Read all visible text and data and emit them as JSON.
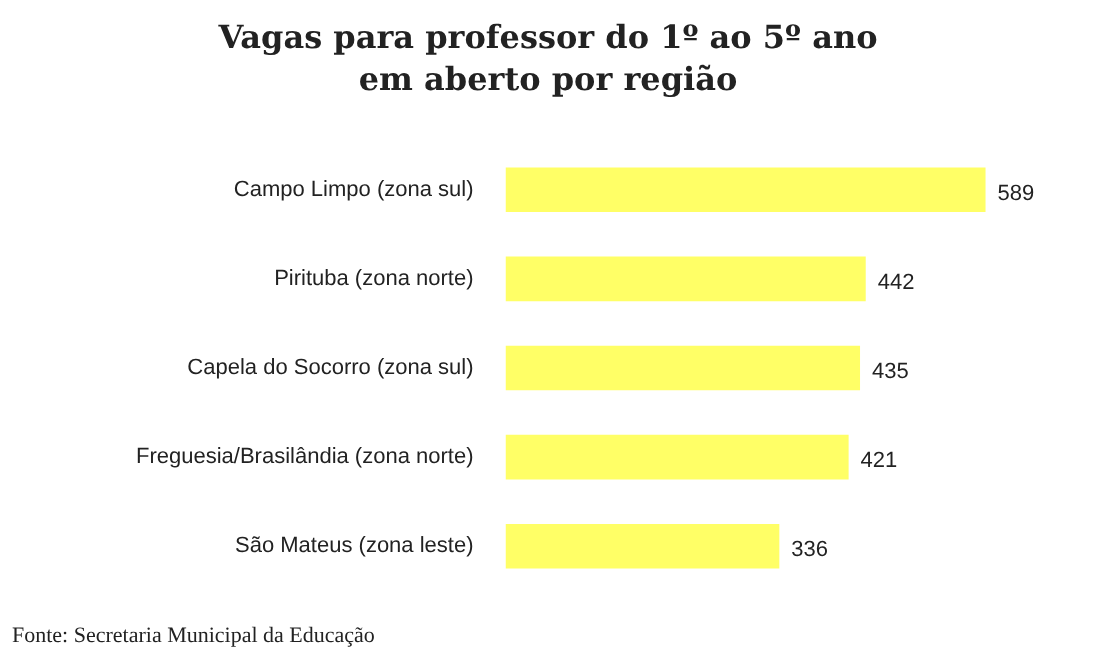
{
  "chart_data": {
    "type": "bar",
    "orientation": "horizontal",
    "title": "Vagas para professor do 1º ao 5º ano em aberto por região",
    "categories": [
      "Campo Limpo (zona sul)",
      "Pirituba (zona norte)",
      "Capela do Socorro (zona sul)",
      "Freguesia/Brasilândia (zona norte)",
      "São Mateus (zona leste)"
    ],
    "values": [
      589,
      442,
      435,
      421,
      336
    ],
    "color": "#ffff66",
    "tick_labels": "y",
    "data_labels": true,
    "legend": false,
    "annotations": [
      "Fonte: Secretaria Municipal da Educação"
    ]
  }
}
